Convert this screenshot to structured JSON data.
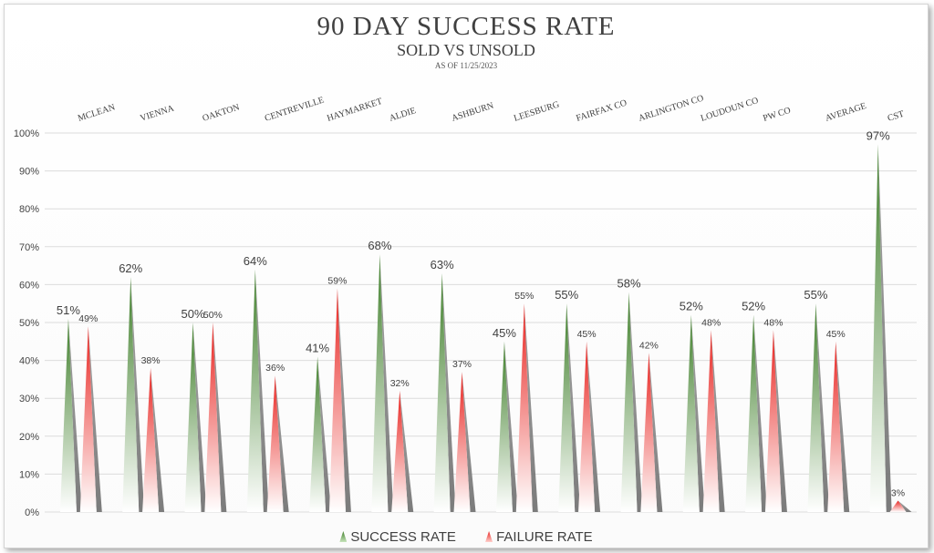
{
  "chart_data": {
    "type": "bar",
    "title": "90 DAY SUCCESS RATE",
    "subtitle": "SOLD VS UNSOLD",
    "note": "AS OF 11/25/2023",
    "categories": [
      "MCLEAN",
      "VIENNA",
      "OAKTON",
      "CENTREVILLE",
      "HAYMARKET",
      "ALDIE",
      "ASHBURN",
      "LEESBURG",
      "FAIRFAX CO",
      "ARLINGTON CO",
      "LOUDOUN CO",
      "PW CO",
      "AVERAGE",
      "CST"
    ],
    "series": [
      {
        "name": "SUCCESS RATE",
        "values": [
          51,
          62,
          50,
          64,
          41,
          68,
          63,
          45,
          55,
          58,
          52,
          52,
          55,
          97
        ],
        "color": "#4a8a33"
      },
      {
        "name": "FAILURE RATE",
        "values": [
          49,
          38,
          50,
          36,
          59,
          32,
          37,
          55,
          45,
          42,
          48,
          48,
          45,
          3
        ],
        "color": "#e8231f"
      }
    ],
    "ylim": [
      0,
      100
    ],
    "yticks": [
      "0%",
      "10%",
      "20%",
      "30%",
      "40%",
      "50%",
      "60%",
      "70%",
      "80%",
      "90%",
      "100%"
    ],
    "grid": true,
    "legend_position": "bottom",
    "category_labels_position": "top"
  }
}
